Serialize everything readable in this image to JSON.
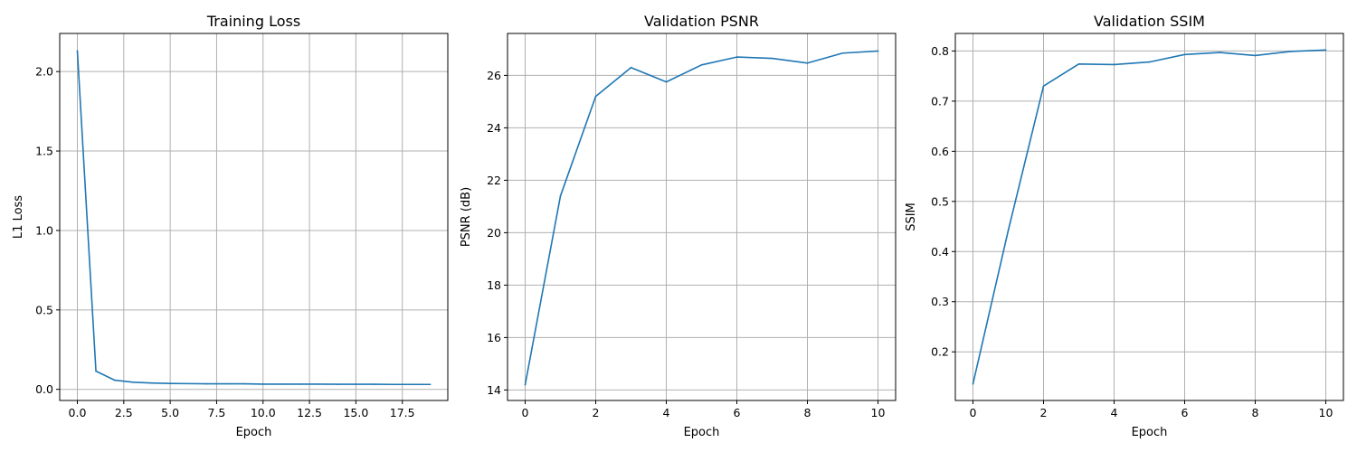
{
  "chart_data": [
    {
      "type": "line",
      "title": "Training Loss",
      "xlabel": "Epoch",
      "ylabel": "L1 Loss",
      "xlim": [
        -0.95,
        19.95
      ],
      "ylim": [
        -0.07,
        2.24
      ],
      "xticks": [
        0,
        2.5,
        5,
        7.5,
        10,
        12.5,
        15,
        17.5
      ],
      "xtick_labels": [
        "0.0",
        "2.5",
        "5.0",
        "7.5",
        "10.0",
        "12.5",
        "15.0",
        "17.5"
      ],
      "yticks": [
        0,
        0.5,
        1.0,
        1.5,
        2.0
      ],
      "ytick_labels": [
        "0.0",
        "0.5",
        "1.0",
        "1.5",
        "2.0"
      ],
      "grid": true,
      "series": [
        {
          "color": "#1f77b4",
          "x": [
            0,
            1,
            2,
            3,
            4,
            5,
            6,
            7,
            8,
            9,
            10,
            11,
            12,
            13,
            14,
            15,
            16,
            17,
            18,
            19
          ],
          "values": [
            2.13,
            0.115,
            0.058,
            0.045,
            0.04,
            0.037,
            0.036,
            0.035,
            0.035,
            0.035,
            0.033,
            0.033,
            0.033,
            0.033,
            0.032,
            0.032,
            0.032,
            0.031,
            0.031,
            0.031
          ]
        }
      ]
    },
    {
      "type": "line",
      "title": "Validation PSNR",
      "xlabel": "Epoch",
      "ylabel": "PSNR (dB)",
      "xlim": [
        -0.5,
        10.5
      ],
      "ylim": [
        13.6,
        27.6
      ],
      "xticks": [
        0,
        2,
        4,
        6,
        8,
        10
      ],
      "xtick_labels": [
        "0",
        "2",
        "4",
        "6",
        "8",
        "10"
      ],
      "yticks": [
        14,
        16,
        18,
        20,
        22,
        24,
        26
      ],
      "ytick_labels": [
        "14",
        "16",
        "18",
        "20",
        "22",
        "24",
        "26"
      ],
      "grid": true,
      "series": [
        {
          "color": "#1f77b4",
          "x": [
            0,
            1,
            2,
            3,
            4,
            5,
            6,
            7,
            8,
            9,
            10
          ],
          "values": [
            14.2,
            21.4,
            25.2,
            26.3,
            25.75,
            26.4,
            26.7,
            26.65,
            26.47,
            26.85,
            26.93
          ]
        }
      ]
    },
    {
      "type": "line",
      "title": "Validation SSIM",
      "xlabel": "Epoch",
      "ylabel": "SSIM",
      "xlim": [
        -0.5,
        10.5
      ],
      "ylim": [
        0.103,
        0.835
      ],
      "xticks": [
        0,
        2,
        4,
        6,
        8,
        10
      ],
      "xtick_labels": [
        "0",
        "2",
        "4",
        "6",
        "8",
        "10"
      ],
      "yticks": [
        0.2,
        0.3,
        0.4,
        0.5,
        0.6,
        0.7,
        0.8
      ],
      "ytick_labels": [
        "0.2",
        "0.3",
        "0.4",
        "0.5",
        "0.6",
        "0.7",
        "0.8"
      ],
      "grid": true,
      "series": [
        {
          "color": "#1f77b4",
          "x": [
            0,
            1,
            2,
            3,
            4,
            5,
            6,
            7,
            8,
            9,
            10
          ],
          "values": [
            0.136,
            0.442,
            0.73,
            0.774,
            0.773,
            0.778,
            0.793,
            0.797,
            0.791,
            0.799,
            0.802
          ]
        }
      ]
    }
  ]
}
